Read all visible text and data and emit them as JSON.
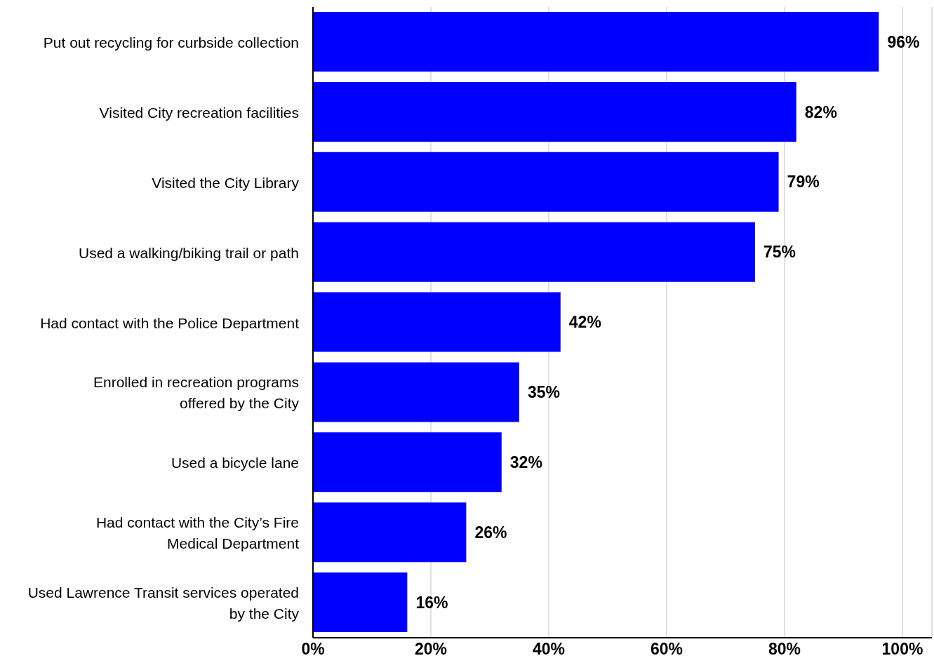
{
  "chart_data": {
    "type": "bar",
    "orientation": "horizontal",
    "categories": [
      "Put out recycling for curbside collection",
      "Visited City recreation facilities",
      "Visited the City Library",
      "Used a walking/biking trail or path",
      "Had contact with the Police Department",
      "Enrolled in recreation programs\noffered by the City",
      "Used a bicycle lane",
      "Had contact with the City’s Fire\nMedical Department",
      "Used Lawrence Transit services operated\nby the City"
    ],
    "values": [
      96,
      82,
      79,
      75,
      42,
      35,
      32,
      26,
      16
    ],
    "value_labels": [
      "96%",
      "82%",
      "79%",
      "75%",
      "42%",
      "35%",
      "32%",
      "26%",
      "16%"
    ],
    "color": "#0000ff",
    "xlim": [
      0,
      105
    ],
    "xticks": [
      {
        "value": 0,
        "label": "0%"
      },
      {
        "value": 20,
        "label": "20%"
      },
      {
        "value": 40,
        "label": "40%"
      },
      {
        "value": 60,
        "label": "60%"
      },
      {
        "value": 80,
        "label": "80%"
      },
      {
        "value": 100,
        "label": "100%"
      }
    ],
    "grid": "x"
  }
}
